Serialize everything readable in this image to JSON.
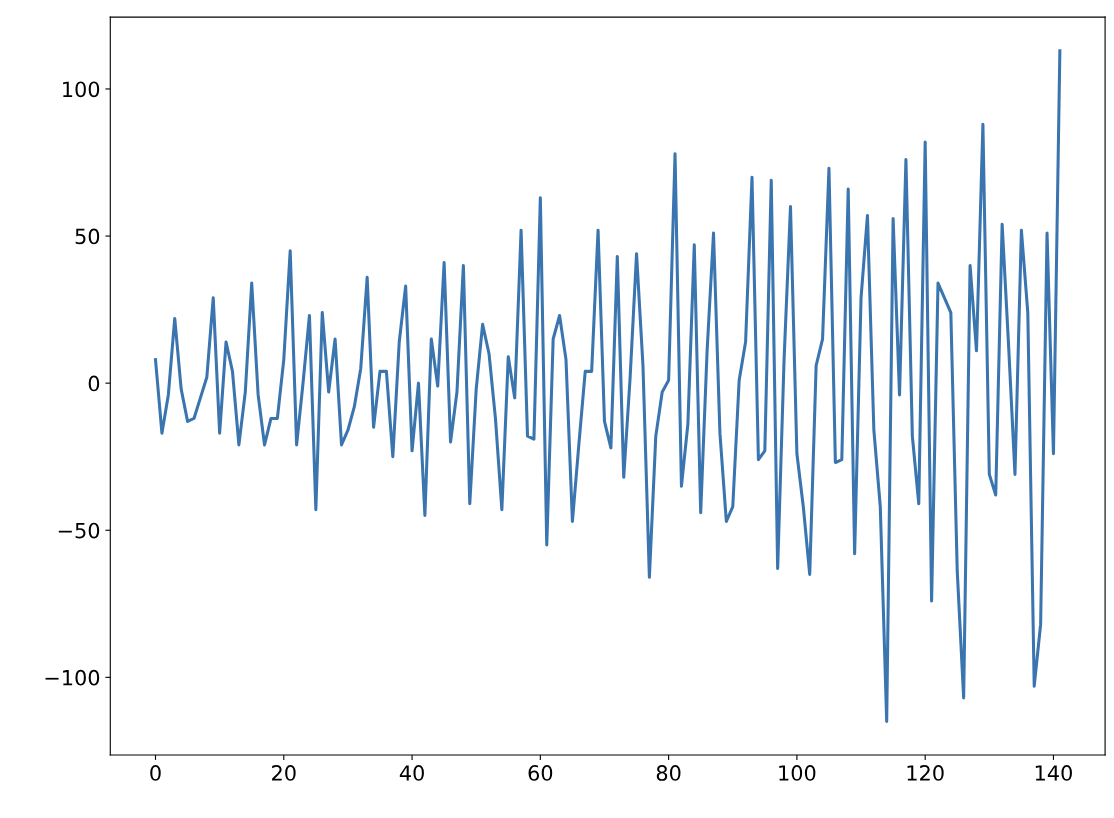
{
  "chart_data": {
    "type": "line",
    "x": [
      0,
      1,
      2,
      3,
      4,
      5,
      6,
      7,
      8,
      9,
      10,
      11,
      12,
      13,
      14,
      15,
      16,
      17,
      18,
      19,
      20,
      21,
      22,
      23,
      24,
      25,
      26,
      27,
      28,
      29,
      30,
      31,
      32,
      33,
      34,
      35,
      36,
      37,
      38,
      39,
      40,
      41,
      42,
      43,
      44,
      45,
      46,
      47,
      48,
      49,
      50,
      51,
      52,
      53,
      54,
      55,
      56,
      57,
      58,
      59,
      60,
      61,
      62,
      63,
      64,
      65,
      66,
      67,
      68,
      69,
      70,
      71,
      72,
      73,
      74,
      75,
      76,
      77,
      78,
      79,
      80,
      81,
      82,
      83,
      84,
      85,
      86,
      87,
      88,
      89,
      90,
      91,
      92,
      93,
      94,
      95,
      96,
      97,
      98,
      99,
      100,
      101,
      102,
      103,
      104,
      105,
      106,
      107,
      108,
      109,
      110,
      111,
      112,
      113,
      114,
      115,
      116,
      117,
      118,
      119,
      120,
      121,
      122,
      123,
      124,
      125,
      126,
      127,
      128,
      129,
      130,
      131,
      132,
      133,
      134,
      135,
      136,
      137,
      138,
      139,
      140,
      141
    ],
    "series": [
      {
        "color": "#3b75af",
        "values": [
          8,
          -17,
          -4,
          22,
          -2,
          -13,
          -12,
          -5,
          2,
          29,
          -17,
          14,
          4,
          -21,
          -3,
          34,
          -4,
          -21,
          -12,
          -12,
          8,
          45,
          -21,
          0,
          23,
          -43,
          24,
          -3,
          15,
          -21,
          -16,
          -8,
          5,
          36,
          -15,
          4,
          4,
          -25,
          14,
          33,
          -23,
          0,
          -45,
          15,
          -1,
          41,
          -20,
          -3,
          40,
          -41,
          -2,
          20,
          10,
          -12,
          -43,
          9,
          -5,
          52,
          -18,
          -19,
          63,
          -55,
          15,
          23,
          8,
          -47,
          -21,
          4,
          4,
          52,
          -13,
          -22,
          43,
          -32,
          2,
          44,
          6,
          -66,
          -18,
          -3,
          1,
          78,
          -35,
          -14,
          47,
          -44,
          11,
          51,
          -17,
          -47,
          -42,
          1,
          14,
          70,
          -26,
          -23,
          69,
          -63,
          8,
          60,
          -24,
          -42,
          -65,
          6,
          15,
          73,
          -27,
          -26,
          66,
          -58,
          29,
          57,
          -16,
          -42,
          -115,
          56,
          -4,
          76,
          -18,
          -41,
          82,
          -74,
          34,
          29,
          24,
          -64,
          -107,
          40,
          11,
          88,
          -31,
          -38,
          54,
          13,
          -31,
          52,
          24,
          -103,
          -82,
          51,
          -24,
          113
        ]
      }
    ],
    "xlim": [
      -7.05,
      148.05
    ],
    "ylim": [
      -126.4,
      124.4
    ],
    "xticks": [
      0,
      20,
      40,
      60,
      80,
      100,
      120,
      140
    ],
    "yticks": [
      {
        "value": -100,
        "label": "−100"
      },
      {
        "value": -50,
        "label": "−50"
      },
      0,
      50,
      100
    ],
    "grid": false,
    "legend": false
  }
}
